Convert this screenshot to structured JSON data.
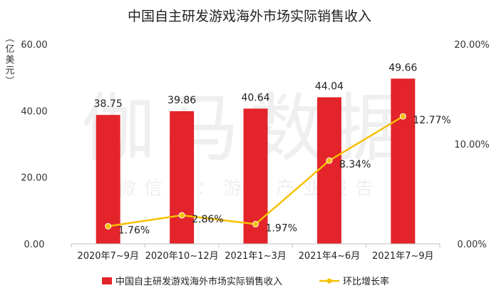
{
  "chart_data": {
    "type": "bar",
    "title": "中国自主研发游戏海外市场实际销售收入",
    "ylabel": "（亿美元）",
    "ylim": [
      0,
      60
    ],
    "yticks": [
      "0.00",
      "20.00",
      "40.00",
      "60.00"
    ],
    "y2lim": [
      0,
      20
    ],
    "y2ticks": [
      "0.00%",
      "10.00%",
      "20.00%"
    ],
    "categories": [
      "2020年7~9月",
      "2020年10~12月",
      "2021年1~3月",
      "2021年4~6月",
      "2021年7~9月"
    ],
    "series": [
      {
        "name": "中国自主研发游戏海外市场实际销售收入",
        "type": "bar",
        "axis": "left",
        "color": "#e3242b",
        "values": [
          38.75,
          39.86,
          40.64,
          44.04,
          49.66
        ],
        "labels": [
          "38.75",
          "39.86",
          "40.64",
          "44.04",
          "49.66"
        ]
      },
      {
        "name": "环比增长率",
        "type": "line",
        "axis": "right",
        "color": "#f5c000",
        "values": [
          1.76,
          2.86,
          1.97,
          8.34,
          12.77
        ],
        "labels": [
          "1.76%",
          "2.86%",
          "1.97%",
          "8.34%",
          "12.77%"
        ]
      }
    ],
    "grid": false,
    "legend": "bottom"
  },
  "watermark": {
    "main": "伽马数据",
    "sub": "微信号：游戏产业报告"
  }
}
